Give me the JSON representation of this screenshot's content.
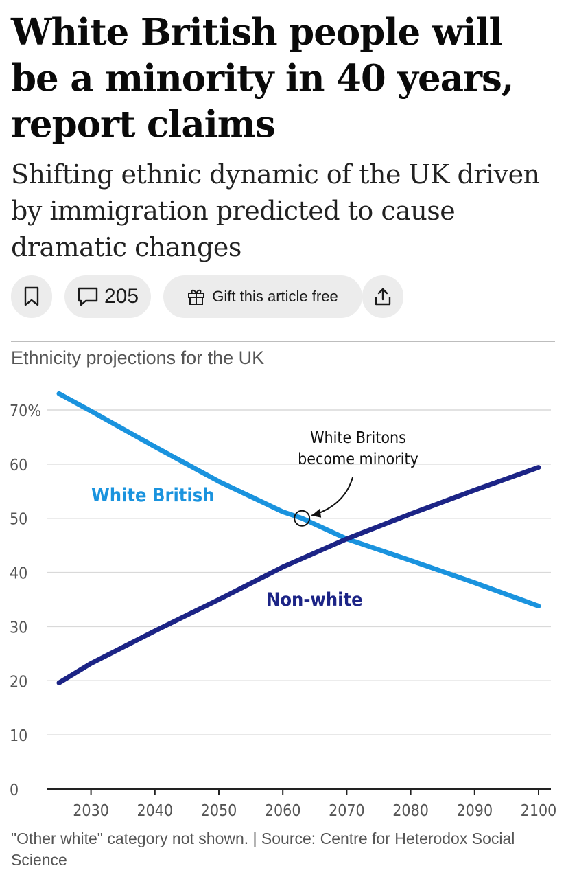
{
  "article": {
    "headline": "White British people will be a minority in 40 years, report claims",
    "standfirst": "Shifting ethnic dynamic of the UK driven by immigration predicted to cause dramatic changes",
    "comment_count": "205",
    "gift_label": "Gift this article free"
  },
  "icons": {
    "bookmark": "bookmark-icon",
    "comment": "comment-bubble-icon",
    "gift": "gift-icon",
    "share": "share-icon"
  },
  "colors": {
    "white_british": "#1a93de",
    "non_white": "#1c2486",
    "grid": "#d9d9d9",
    "axis": "#222222",
    "tick_label": "#555555"
  },
  "chart_data": {
    "type": "line",
    "title": "Ethnicity projections for the UK",
    "xlabel": "",
    "ylabel": "",
    "xlim": [
      2025,
      2100
    ],
    "ylim": [
      0,
      70
    ],
    "x_ticks": [
      2030,
      2040,
      2050,
      2060,
      2070,
      2080,
      2090,
      2100
    ],
    "x_tick_labels": [
      "2030",
      "2040",
      "2050",
      "2060",
      "2070",
      "2080",
      "2090",
      "2100"
    ],
    "y_ticks": [
      0,
      10,
      20,
      30,
      40,
      50,
      60,
      70
    ],
    "y_tick_labels": [
      "0",
      "10",
      "20",
      "30",
      "40",
      "50",
      "60",
      "70%"
    ],
    "grid": true,
    "series": [
      {
        "name": "White British",
        "label": "White British",
        "color": "#1a93de",
        "x": [
          2025,
          2030,
          2040,
          2050,
          2060,
          2063,
          2070,
          2080,
          2090,
          2100
        ],
        "values": [
          73,
          69.8,
          63.2,
          56.8,
          51.2,
          50,
          46.2,
          42.2,
          38.1,
          33.8
        ]
      },
      {
        "name": "Non-white",
        "label": "Non-white",
        "color": "#1c2486",
        "x": [
          2025,
          2030,
          2040,
          2050,
          2060,
          2070,
          2080,
          2090,
          2100
        ],
        "values": [
          19.6,
          23.2,
          29.2,
          35,
          41,
          46.2,
          50.8,
          55.2,
          59.4
        ]
      }
    ],
    "annotation": {
      "text_line1": "White Britons",
      "text_line2": "become minority",
      "x": 2063,
      "y": 50
    },
    "footnote": "\"Other white\" category not shown. | Source: Centre for Heterodox Social Science"
  }
}
